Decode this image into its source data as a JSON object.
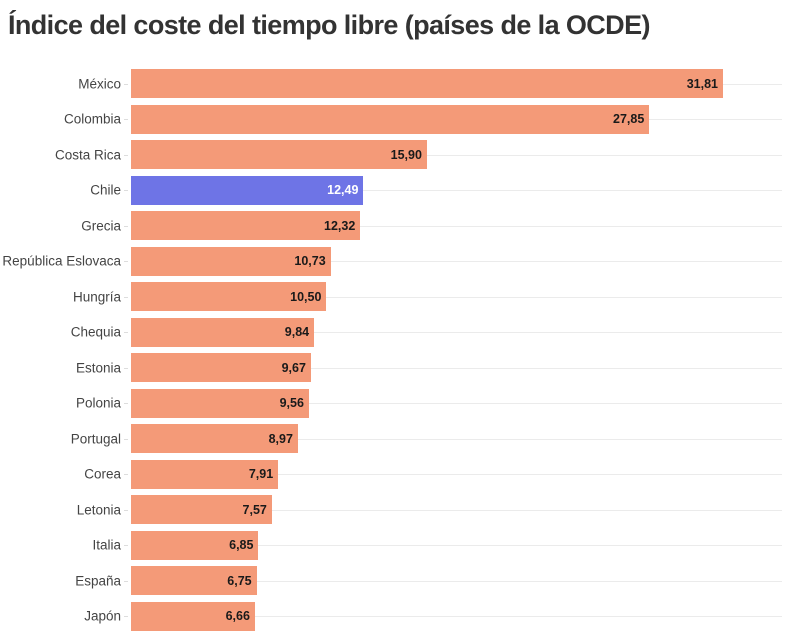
{
  "title": "Índice del coste del tiempo libre (países de la OCDE)",
  "colors": {
    "default_bar": "#f49a78",
    "highlight_bar": "#6e74e6",
    "gridline": "#ebebeb",
    "title": "#333333"
  },
  "chart_data": {
    "type": "bar",
    "orientation": "horizontal",
    "title": "Índice del coste del tiempo libre (países de la OCDE)",
    "xlabel": "",
    "ylabel": "",
    "xlim": [
      0,
      35
    ],
    "grid": true,
    "legend": null,
    "highlight": "Chile",
    "categories": [
      "México",
      "Colombia",
      "Costa Rica",
      "Chile",
      "Grecia",
      "República Eslovaca",
      "Hungría",
      "Chequia",
      "Estonia",
      "Polonia",
      "Portugal",
      "Corea",
      "Letonia",
      "Italia",
      "España",
      "Japón"
    ],
    "values": [
      31.81,
      27.85,
      15.9,
      12.49,
      12.32,
      10.73,
      10.5,
      9.84,
      9.67,
      9.56,
      8.97,
      7.91,
      7.57,
      6.85,
      6.75,
      6.66
    ],
    "value_labels": [
      "31,81",
      "27,85",
      "15,90",
      "12,49",
      "12,32",
      "10,73",
      "10,50",
      "9,84",
      "9,67",
      "9,56",
      "8,97",
      "7,91",
      "7,57",
      "6,85",
      "6,75",
      "6,66"
    ]
  }
}
